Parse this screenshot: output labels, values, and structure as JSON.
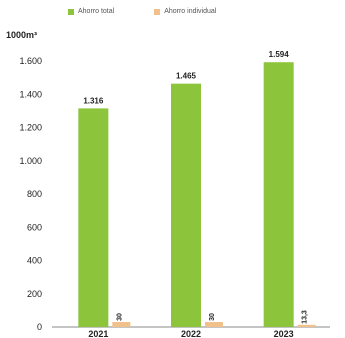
{
  "chart_data": {
    "type": "bar",
    "unit_label": "1000m³",
    "categories": [
      "2021",
      "2022",
      "2023"
    ],
    "series": [
      {
        "name": "Ahorro total",
        "color": "#8cc43c",
        "values": [
          1316,
          1465,
          1594
        ],
        "labels": [
          "1.316",
          "1.465",
          "1.594"
        ]
      },
      {
        "name": "Ahorro individual",
        "color": "#f2c08a",
        "values": [
          30,
          30,
          13.3
        ],
        "labels": [
          "30",
          "30",
          "13,3"
        ]
      }
    ],
    "ylim": [
      0,
      1800
    ],
    "yticks": [
      0,
      200,
      400,
      600,
      800,
      1000,
      1200,
      1400,
      1600
    ],
    "ytick_labels": [
      "0",
      "200",
      "400",
      "600",
      "800",
      "1.000",
      "1.200",
      "1.400",
      "1.600"
    ],
    "grid": false,
    "legend_position": "top"
  }
}
